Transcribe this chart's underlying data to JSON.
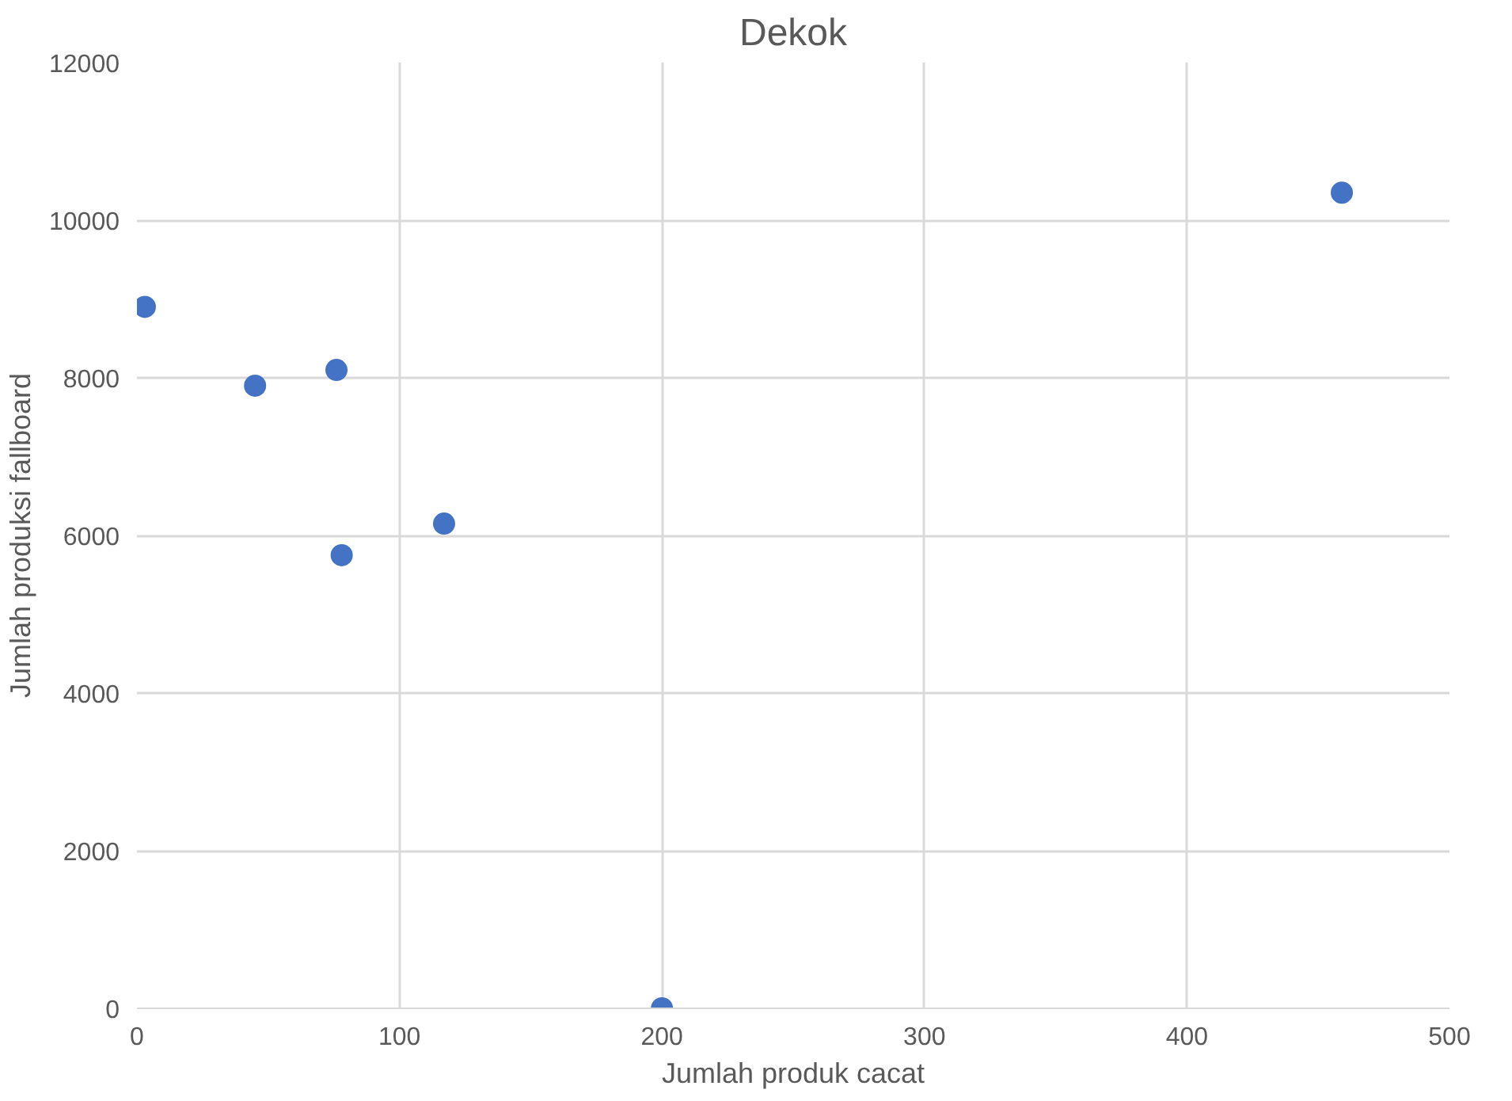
{
  "chart_data": {
    "type": "scatter",
    "title": "Dekok",
    "xlabel": "Jumlah produk cacat",
    "ylabel": "Jumlah produksi fallboard",
    "x": [
      3,
      45,
      76,
      78,
      117,
      200,
      459
    ],
    "series": [
      {
        "color": "#4472c4",
        "values": [
          8900,
          7900,
          8100,
          5750,
          6150,
          0,
          10350
        ]
      }
    ],
    "xlim": [
      0,
      500
    ],
    "xticks": [
      0,
      100,
      200,
      300,
      400,
      500
    ],
    "ylim": [
      0,
      12000
    ],
    "yticks": [
      0,
      2000,
      4000,
      6000,
      8000,
      10000,
      12000
    ],
    "grid": true,
    "marker": "circle"
  }
}
